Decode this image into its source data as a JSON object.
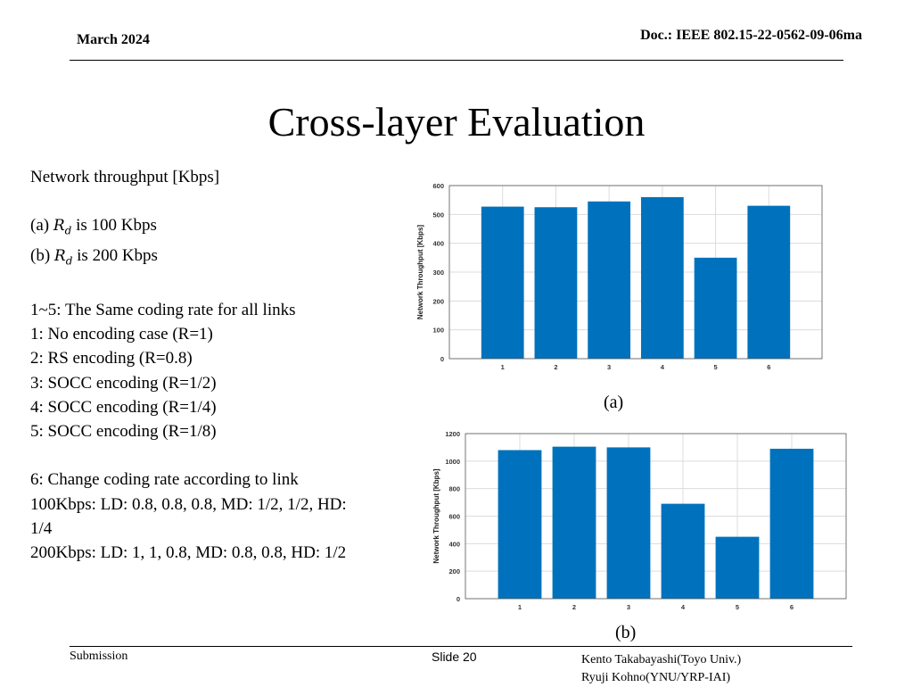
{
  "header": {
    "date": "March 2024",
    "doc": "Doc.: IEEE 802.15-22-0562-09-06ma"
  },
  "title": "Cross-layer Evaluation",
  "left_text": {
    "heading": "Network throughput [Kbps]",
    "rate_a_prefix": "(a) ",
    "rate_a_symbol": "R",
    "rate_a_sub": "d",
    "rate_a_suffix": " is 100 Kbps",
    "rate_b_prefix": "(b) ",
    "rate_b_symbol": "R",
    "rate_b_sub": "d",
    "rate_b_suffix": " is 200 Kbps",
    "same_rate": "1~5: The Same coding rate for all links",
    "case1": "1: No encoding case (R=1)",
    "case2": "2: RS encoding (R=0.8)",
    "case3": "3: SOCC encoding (R=1/2)",
    "case4": "4: SOCC encoding (R=1/4)",
    "case5": "5: SOCC encoding (R=1/8)",
    "case6": "6: Change coding rate according to link",
    "rate100": "100Kbps: LD: 0.8, 0.8, 0.8, MD: 1/2, 1/2, HD: 1/4",
    "rate200": "200Kbps: LD: 1, 1, 0.8, MD: 0.8, 0.8, HD: 1/2"
  },
  "captions": {
    "a": "(a)",
    "b": "(b)"
  },
  "chart_data": [
    {
      "type": "bar",
      "categories": [
        "1",
        "2",
        "3",
        "4",
        "5",
        "6"
      ],
      "values": [
        527,
        525,
        545,
        560,
        350,
        530
      ],
      "ylabel": "Network Throughput [Kbps]",
      "xlabel": "",
      "ylim": [
        0,
        600
      ],
      "yticks": [
        0,
        100,
        200,
        300,
        400,
        500,
        600
      ],
      "grid": true,
      "bar_color": "#0072BD"
    },
    {
      "type": "bar",
      "categories": [
        "1",
        "2",
        "3",
        "4",
        "5",
        "6"
      ],
      "values": [
        1080,
        1105,
        1100,
        690,
        450,
        1090
      ],
      "ylabel": "Network Throughput [Kbps]",
      "xlabel": "",
      "ylim": [
        0,
        1200
      ],
      "yticks": [
        0,
        200,
        400,
        600,
        800,
        1000,
        1200
      ],
      "grid": true,
      "bar_color": "#0072BD"
    }
  ],
  "footer": {
    "left": "Submission",
    "center": "Slide 20",
    "right_line1": "Kento Takabayashi(Toyo Univ.)",
    "right_line2": "Ryuji Kohno(YNU/YRP-IAI)"
  }
}
